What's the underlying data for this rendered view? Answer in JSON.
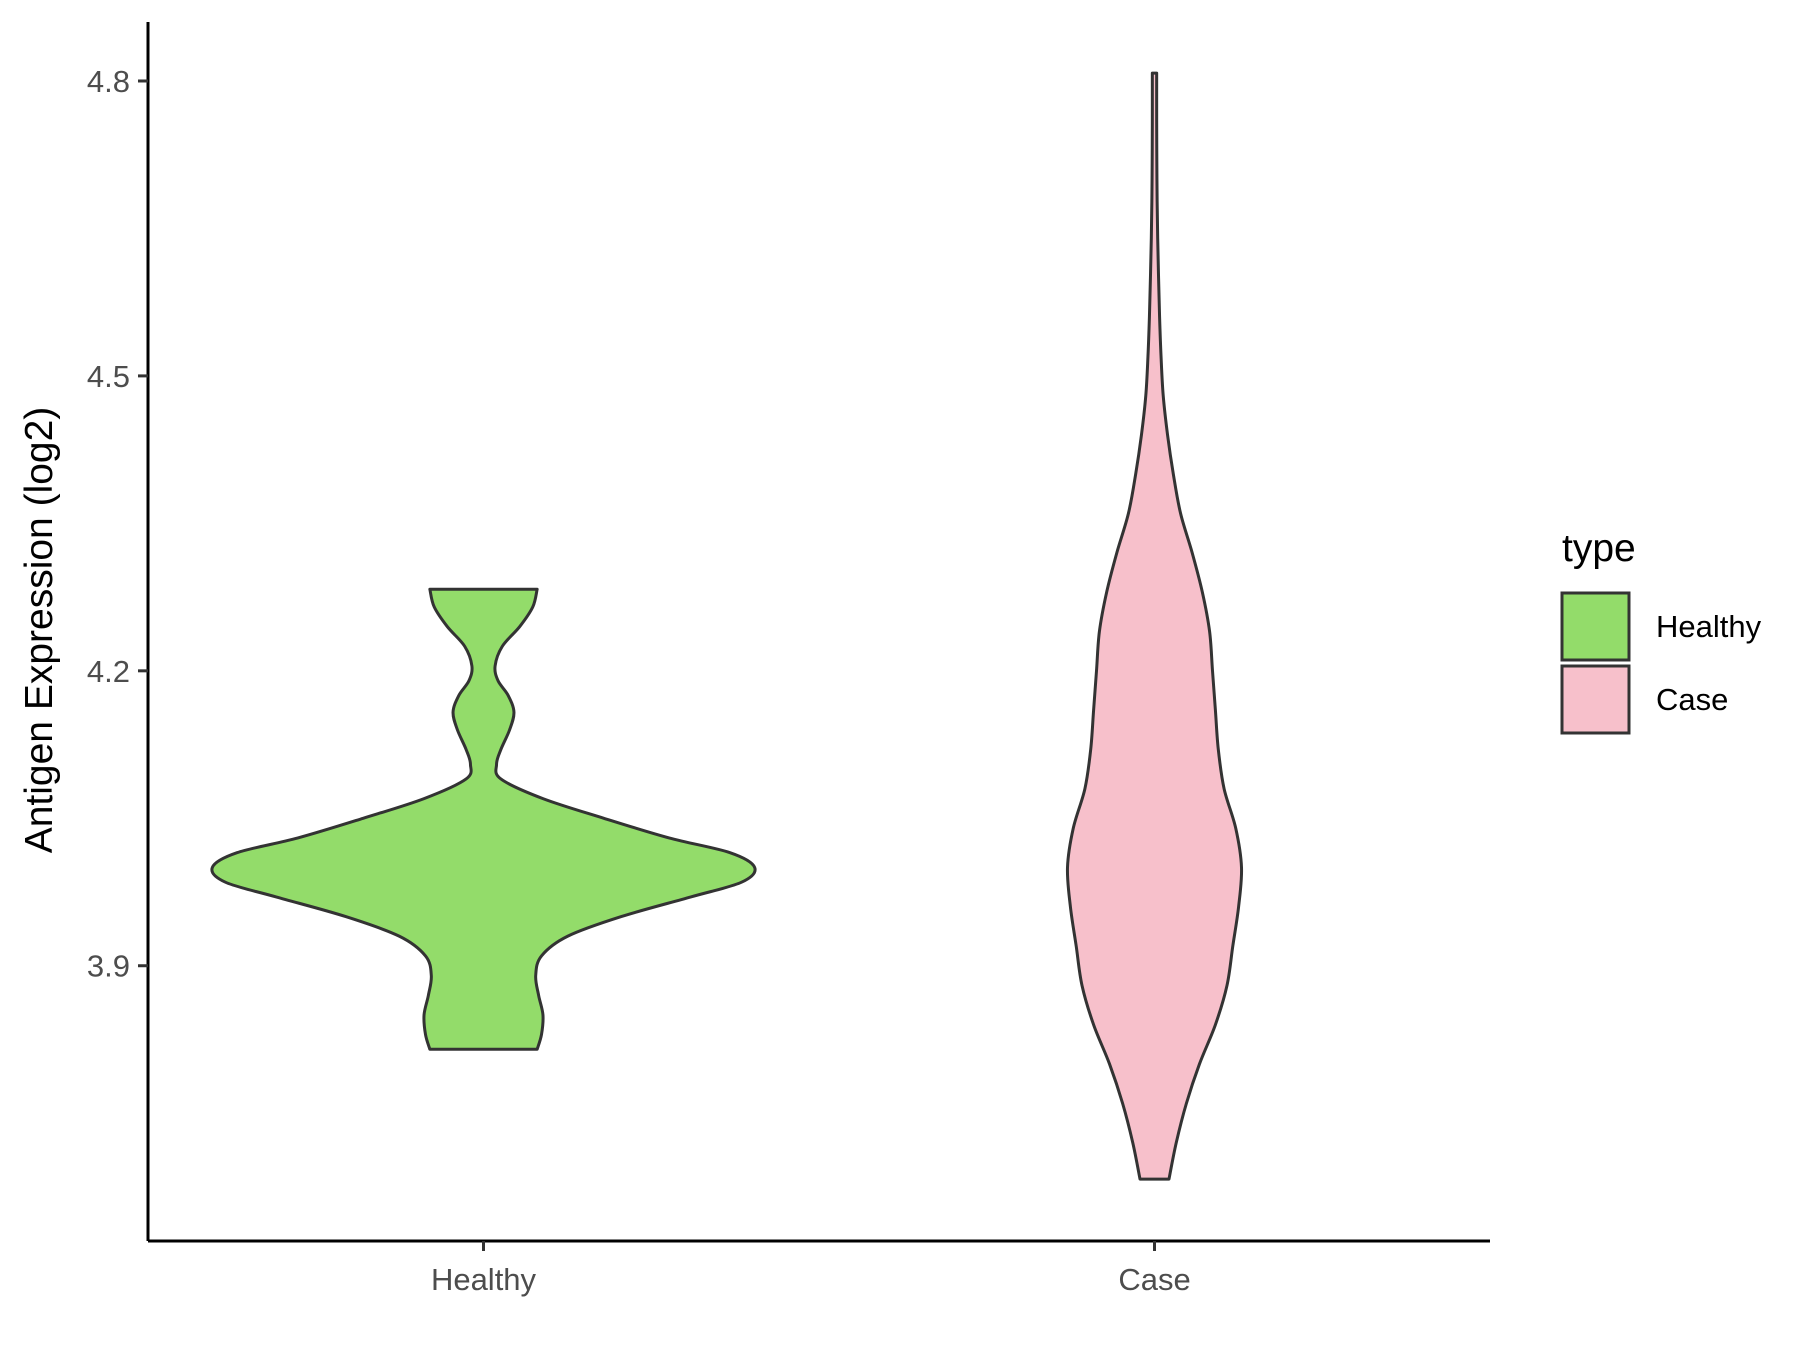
{
  "chart_data": {
    "type": "violin",
    "title": "",
    "xlabel": "",
    "ylabel": "Antigen Expression (log2)",
    "ylim": [
      3.62,
      4.86
    ],
    "yticks": [
      3.9,
      4.2,
      4.5,
      4.8
    ],
    "ytick_labels": [
      "3.9",
      "4.2",
      "4.5",
      "4.8"
    ],
    "categories": [
      "Healthy",
      "Case"
    ],
    "grid": false,
    "legend": {
      "title": "type",
      "position": "right",
      "entries": [
        {
          "label": "Healthy",
          "color": "#93dc6a"
        },
        {
          "label": "Case",
          "color": "#f7c0cb"
        }
      ]
    },
    "series": [
      {
        "name": "Healthy",
        "color": "#93dc6a",
        "min": 3.815,
        "max": 4.283,
        "density": [
          [
            3.815,
            0.37
          ],
          [
            3.83,
            0.4
          ],
          [
            3.85,
            0.41
          ],
          [
            3.87,
            0.38
          ],
          [
            3.89,
            0.36
          ],
          [
            3.91,
            0.4
          ],
          [
            3.93,
            0.58
          ],
          [
            3.95,
            0.95
          ],
          [
            3.97,
            1.43
          ],
          [
            3.985,
            1.78
          ],
          [
            4.0,
            1.87
          ],
          [
            4.015,
            1.7
          ],
          [
            4.03,
            1.28
          ],
          [
            4.05,
            0.83
          ],
          [
            4.07,
            0.41
          ],
          [
            4.09,
            0.12
          ],
          [
            4.105,
            0.09
          ],
          [
            4.12,
            0.12
          ],
          [
            4.14,
            0.18
          ],
          [
            4.158,
            0.21
          ],
          [
            4.175,
            0.17
          ],
          [
            4.19,
            0.1
          ],
          [
            4.205,
            0.08
          ],
          [
            4.225,
            0.13
          ],
          [
            4.245,
            0.25
          ],
          [
            4.265,
            0.34
          ],
          [
            4.283,
            0.37
          ]
        ]
      },
      {
        "name": "Case",
        "color": "#f7c0cb",
        "min": 3.683,
        "max": 4.808,
        "density": [
          [
            3.683,
            0.1
          ],
          [
            3.72,
            0.15
          ],
          [
            3.76,
            0.22
          ],
          [
            3.8,
            0.31
          ],
          [
            3.84,
            0.42
          ],
          [
            3.88,
            0.5
          ],
          [
            3.92,
            0.54
          ],
          [
            3.96,
            0.58
          ],
          [
            4.0,
            0.6
          ],
          [
            4.04,
            0.56
          ],
          [
            4.08,
            0.48
          ],
          [
            4.12,
            0.44
          ],
          [
            4.16,
            0.42
          ],
          [
            4.2,
            0.4
          ],
          [
            4.24,
            0.38
          ],
          [
            4.28,
            0.33
          ],
          [
            4.32,
            0.26
          ],
          [
            4.36,
            0.18
          ],
          [
            4.4,
            0.13
          ],
          [
            4.44,
            0.09
          ],
          [
            4.48,
            0.06
          ],
          [
            4.52,
            0.045
          ],
          [
            4.56,
            0.035
          ],
          [
            4.6,
            0.028
          ],
          [
            4.64,
            0.022
          ],
          [
            4.68,
            0.018
          ],
          [
            4.72,
            0.016
          ],
          [
            4.76,
            0.015
          ],
          [
            4.808,
            0.015
          ]
        ]
      }
    ]
  }
}
